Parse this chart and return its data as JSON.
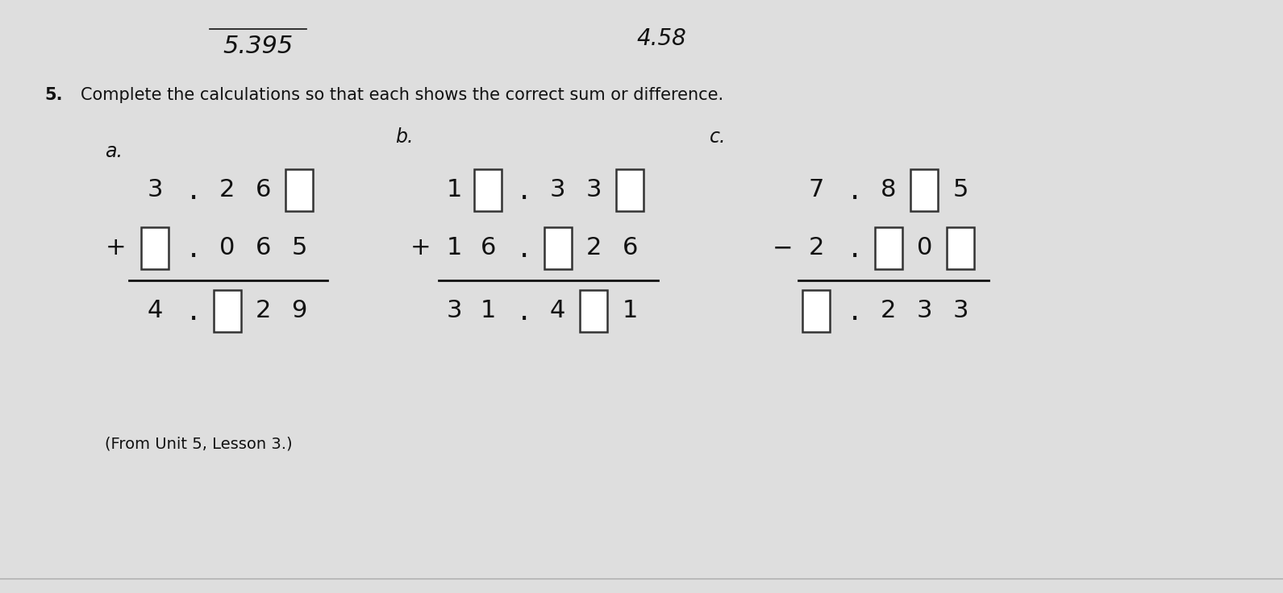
{
  "bg_color": "#dedede",
  "title_number": "5.",
  "title_text": "Complete the calculations so that each shows the correct sum or difference.",
  "footer_text": "(From Unit 5, Lesson 3.)",
  "top_handwritten_left": "5.395",
  "top_handwritten_right": "4.58",
  "section_a": "a.",
  "section_b": "b.",
  "section_c": "c.",
  "font_size_big": 22,
  "font_size_title": 15,
  "font_size_section": 17,
  "line_color": "#111111",
  "box_color": "#333333"
}
